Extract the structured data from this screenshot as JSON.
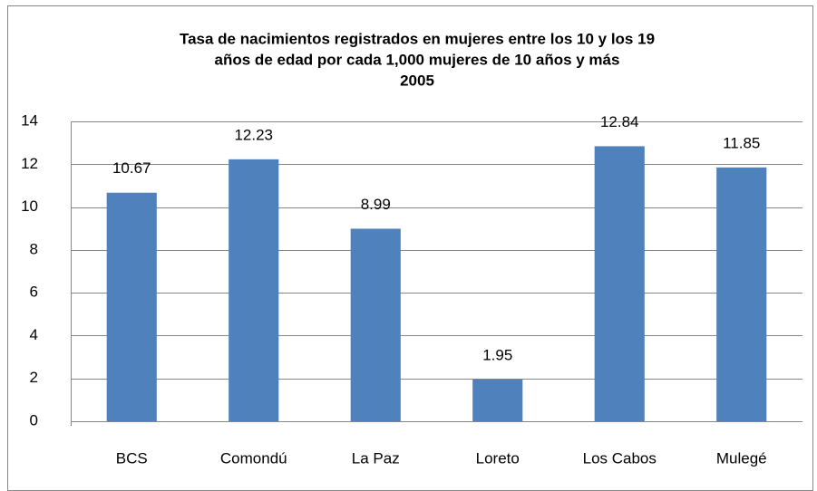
{
  "chart_data": {
    "type": "bar",
    "title": [
      "Tasa de nacimientos registrados en mujeres entre los 10 y los 19",
      "años de edad por cada 1,000 mujeres de 10 años y más",
      "2005"
    ],
    "categories": [
      "BCS",
      "Comondú",
      "La Paz",
      "Loreto",
      "Los Cabos",
      "Mulegé"
    ],
    "values": [
      10.67,
      12.23,
      8.99,
      1.95,
      12.84,
      11.85
    ],
    "color": "#4f81bd",
    "ylim": [
      0,
      14
    ],
    "yticks": [
      0,
      2,
      4,
      6,
      8,
      10,
      12,
      14
    ],
    "grid": true
  }
}
